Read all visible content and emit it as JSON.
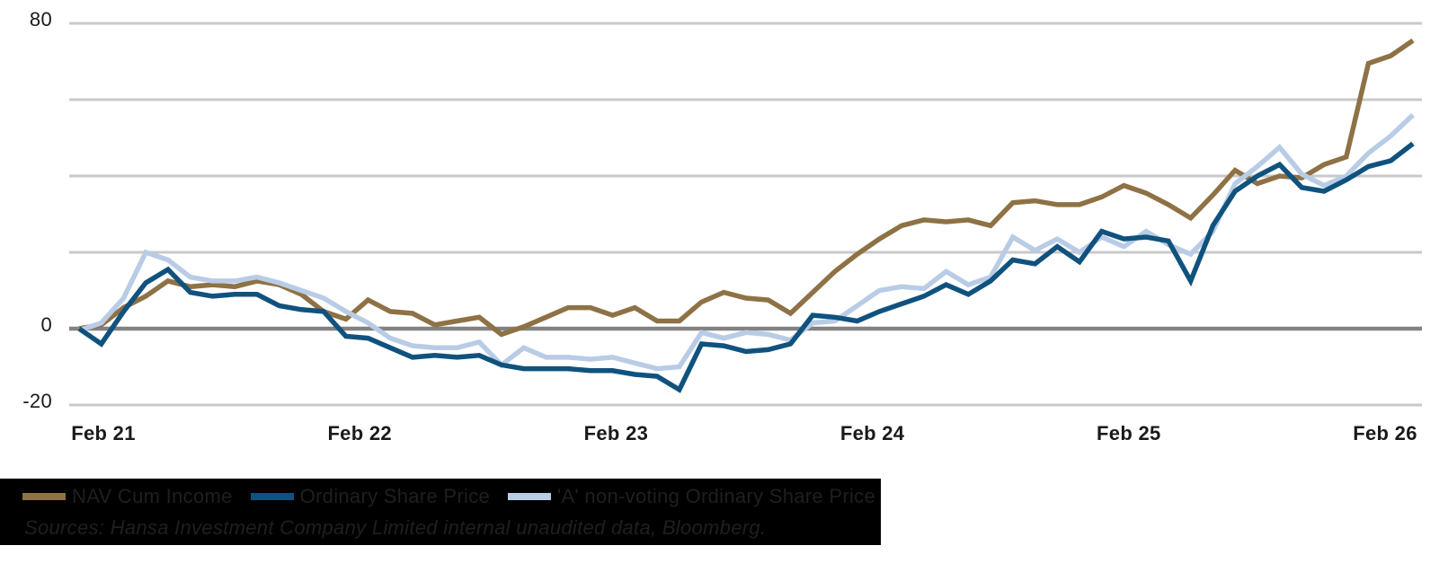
{
  "chart_data": {
    "type": "line",
    "title": "",
    "x_tick_labels": [
      "Feb 21",
      "Feb 22",
      "Feb 23",
      "Feb 24",
      "Feb 25",
      "Feb 26"
    ],
    "x_unit": "month",
    "points_per_year": 12,
    "y_axis": {
      "ylim": [
        -20,
        80
      ],
      "gridline_values": [
        80,
        60,
        40,
        20,
        0,
        -20
      ],
      "labeled_ticks": [
        {
          "label": "80",
          "value": 80
        },
        {
          "label": "0",
          "value": 0
        },
        {
          "label": "-20",
          "value": -20
        }
      ]
    },
    "grid": "horizontal",
    "legend_position": "bottom",
    "series": [
      {
        "name": "NAV Cum Income",
        "color": "#8E7245",
        "values": [
          0,
          1,
          5.5,
          8.5,
          12.5,
          11,
          11.5,
          11,
          12.5,
          11.5,
          9,
          4.5,
          2.5,
          7.5,
          4.5,
          4,
          1,
          2,
          3,
          -1.5,
          0.5,
          3,
          5.5,
          5.5,
          3.5,
          5.5,
          2,
          2,
          7,
          9.5,
          8,
          7.5,
          4,
          9.5,
          15,
          19.5,
          23.5,
          27,
          28.5,
          28,
          28.5,
          27,
          33,
          33.5,
          32.5,
          32.5,
          34.5,
          37.5,
          35.5,
          32.5,
          29,
          35,
          41.5,
          38,
          40,
          39.5,
          43,
          45,
          69.5,
          71.5,
          75.5
        ]
      },
      {
        "name": "Ordinary Share Price",
        "color": "#10527E",
        "values": [
          0,
          -4,
          4.5,
          12,
          15.5,
          9.5,
          8.5,
          9,
          9,
          6,
          5,
          4.5,
          -2,
          -2.5,
          -5,
          -7.5,
          -7,
          -7.5,
          -7,
          -9.5,
          -10.5,
          -10.5,
          -10.5,
          -11,
          -11,
          -12,
          -12.5,
          -16,
          -4,
          -4.5,
          -6,
          -5.5,
          -4,
          3.5,
          3,
          2,
          4.5,
          6.5,
          8.5,
          11.5,
          9,
          12.5,
          18,
          17,
          21.5,
          17.5,
          25.5,
          23.5,
          24,
          23,
          12.5,
          27,
          36,
          40,
          43,
          37,
          36,
          39,
          42.5,
          44,
          48.5
        ]
      },
      {
        "name": "'A' non-voting Ordinary Share Price",
        "color": "#B9CCE6",
        "values": [
          -0.5,
          1.5,
          8,
          20,
          18,
          13.5,
          12.5,
          12.5,
          13.5,
          12,
          10,
          8,
          4.5,
          1.5,
          -2.5,
          -4.5,
          -5,
          -5,
          -3.5,
          -9.5,
          -5,
          -7.5,
          -7.5,
          -8,
          -7.5,
          -9,
          -10.5,
          -10,
          -1,
          -2.5,
          -1,
          -1.5,
          -3,
          1.5,
          2,
          6,
          10,
          11,
          10.5,
          15,
          11.5,
          13.5,
          24,
          20.5,
          23.5,
          20,
          24,
          21.5,
          25.5,
          22,
          19.5,
          25.5,
          38,
          42.5,
          47.5,
          40.5,
          37.5,
          40,
          46,
          50.5,
          56
        ]
      }
    ],
    "colors": {
      "gridline": "#C9C9C9",
      "zero_line": "#828282",
      "axis_label": "#1a1a1a"
    }
  },
  "legend": {
    "items": [
      {
        "label": "NAV Cum Income",
        "color": "#8E7245"
      },
      {
        "label": "Ordinary Share Price",
        "color": "#10527E"
      },
      {
        "label": "'A' non-voting Ordinary Share Price",
        "color": "#B9CCE6"
      }
    ],
    "background": "#000000",
    "text_color": "#1f1f1f"
  },
  "footer": {
    "sources": "Sources: Hansa Investment Company Limited internal unaudited data, Bloomberg."
  }
}
